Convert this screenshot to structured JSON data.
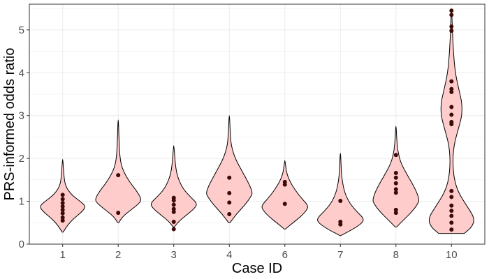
{
  "chart_data": {
    "type": "violin",
    "xlabel": "Case ID",
    "ylabel": "PRS-informed odds ratio",
    "ylim": [
      0,
      5.6
    ],
    "yticks": [
      0,
      1,
      2,
      3,
      4,
      5
    ],
    "grid": true,
    "categories": [
      "1",
      "2",
      "3",
      "4",
      "6",
      "7",
      "8",
      "10"
    ],
    "colors": {
      "violin_fill": "#ffcccc",
      "violin_stroke": "#000000",
      "point": "#3d0a0a",
      "grid": "#ebebeb",
      "panel_border": "#333333"
    },
    "violins": [
      {
        "case": "1",
        "min": 0.28,
        "max": 1.98,
        "mode": 0.88,
        "profile": [
          [
            0.28,
            0.02
          ],
          [
            0.45,
            0.22
          ],
          [
            0.6,
            0.48
          ],
          [
            0.75,
            0.82
          ],
          [
            0.88,
            1.0
          ],
          [
            1.0,
            0.75
          ],
          [
            1.15,
            0.38
          ],
          [
            1.35,
            0.12
          ],
          [
            1.6,
            0.05
          ],
          [
            1.98,
            0.01
          ]
        ]
      },
      {
        "case": "2",
        "min": 0.5,
        "max": 2.9,
        "mode": 1.05,
        "profile": [
          [
            0.5,
            0.02
          ],
          [
            0.65,
            0.2
          ],
          [
            0.8,
            0.55
          ],
          [
            0.95,
            0.9
          ],
          [
            1.05,
            1.0
          ],
          [
            1.25,
            0.78
          ],
          [
            1.5,
            0.42
          ],
          [
            1.8,
            0.14
          ],
          [
            2.1,
            0.06
          ],
          [
            2.5,
            0.03
          ],
          [
            2.9,
            0.01
          ]
        ]
      },
      {
        "case": "3",
        "min": 0.4,
        "max": 2.3,
        "mode": 0.92,
        "profile": [
          [
            0.4,
            0.02
          ],
          [
            0.55,
            0.25
          ],
          [
            0.7,
            0.6
          ],
          [
            0.85,
            0.92
          ],
          [
            0.95,
            1.0
          ],
          [
            1.1,
            0.72
          ],
          [
            1.3,
            0.38
          ],
          [
            1.6,
            0.14
          ],
          [
            1.9,
            0.06
          ],
          [
            2.3,
            0.01
          ]
        ]
      },
      {
        "case": "4",
        "min": 0.5,
        "max": 3.0,
        "mode": 1.2,
        "profile": [
          [
            0.5,
            0.03
          ],
          [
            0.7,
            0.3
          ],
          [
            0.9,
            0.65
          ],
          [
            1.1,
            0.92
          ],
          [
            1.2,
            1.0
          ],
          [
            1.4,
            0.85
          ],
          [
            1.7,
            0.55
          ],
          [
            2.0,
            0.25
          ],
          [
            2.3,
            0.08
          ],
          [
            2.6,
            0.04
          ],
          [
            3.0,
            0.01
          ]
        ]
      },
      {
        "case": "6",
        "min": 0.35,
        "max": 1.95,
        "mode": 0.9,
        "profile": [
          [
            0.35,
            0.02
          ],
          [
            0.5,
            0.35
          ],
          [
            0.65,
            0.7
          ],
          [
            0.8,
            0.95
          ],
          [
            0.9,
            1.0
          ],
          [
            1.05,
            0.75
          ],
          [
            1.25,
            0.45
          ],
          [
            1.5,
            0.18
          ],
          [
            1.7,
            0.06
          ],
          [
            1.95,
            0.01
          ]
        ]
      },
      {
        "case": "7",
        "min": 0.2,
        "max": 2.12,
        "mode": 0.55,
        "profile": [
          [
            0.2,
            0.02
          ],
          [
            0.35,
            0.55
          ],
          [
            0.5,
            0.95
          ],
          [
            0.6,
            1.0
          ],
          [
            0.75,
            0.72
          ],
          [
            0.95,
            0.4
          ],
          [
            1.2,
            0.18
          ],
          [
            1.5,
            0.07
          ],
          [
            1.8,
            0.03
          ],
          [
            2.12,
            0.01
          ]
        ]
      },
      {
        "case": "8",
        "min": 0.4,
        "max": 2.75,
        "mode": 1.05,
        "profile": [
          [
            0.4,
            0.03
          ],
          [
            0.55,
            0.3
          ],
          [
            0.75,
            0.68
          ],
          [
            0.95,
            0.95
          ],
          [
            1.05,
            1.0
          ],
          [
            1.3,
            0.82
          ],
          [
            1.6,
            0.5
          ],
          [
            1.9,
            0.2
          ],
          [
            2.2,
            0.07
          ],
          [
            2.5,
            0.03
          ],
          [
            2.75,
            0.01
          ]
        ]
      },
      {
        "case": "10",
        "min": 0.25,
        "max": 5.45,
        "mode": 0.6,
        "profile": [
          [
            0.25,
            0.55
          ],
          [
            0.4,
            0.88
          ],
          [
            0.6,
            1.0
          ],
          [
            0.9,
            0.65
          ],
          [
            1.2,
            0.3
          ],
          [
            1.5,
            0.12
          ],
          [
            1.9,
            0.05
          ],
          [
            2.3,
            0.1
          ],
          [
            2.7,
            0.3
          ],
          [
            3.0,
            0.45
          ],
          [
            3.3,
            0.45
          ],
          [
            3.6,
            0.32
          ],
          [
            4.0,
            0.16
          ],
          [
            4.5,
            0.08
          ],
          [
            5.0,
            0.04
          ],
          [
            5.45,
            0.01
          ]
        ]
      }
    ],
    "points": [
      {
        "case": "1",
        "values": [
          0.55,
          0.62,
          0.72,
          0.8,
          0.88,
          0.96,
          1.05,
          1.15
        ]
      },
      {
        "case": "2",
        "values": [
          0.73,
          1.61
        ]
      },
      {
        "case": "3",
        "values": [
          0.35,
          0.52,
          0.75,
          0.82,
          0.92,
          1.02,
          1.08
        ]
      },
      {
        "case": "4",
        "values": [
          0.7,
          0.97,
          1.19,
          1.55
        ]
      },
      {
        "case": "6",
        "values": [
          0.94,
          1.39,
          1.45
        ]
      },
      {
        "case": "7",
        "values": [
          0.46,
          0.52,
          1.01
        ]
      },
      {
        "case": "8",
        "values": [
          0.73,
          0.8,
          1.2,
          1.28,
          1.42,
          1.55,
          1.66,
          2.08
        ]
      },
      {
        "case": "10",
        "values": [
          0.34,
          0.5,
          0.66,
          0.78,
          0.9,
          1.1,
          1.24,
          2.8,
          2.85,
          3.02,
          3.2,
          3.55,
          3.62,
          3.8,
          4.98,
          5.08,
          5.35,
          5.45
        ]
      }
    ]
  }
}
